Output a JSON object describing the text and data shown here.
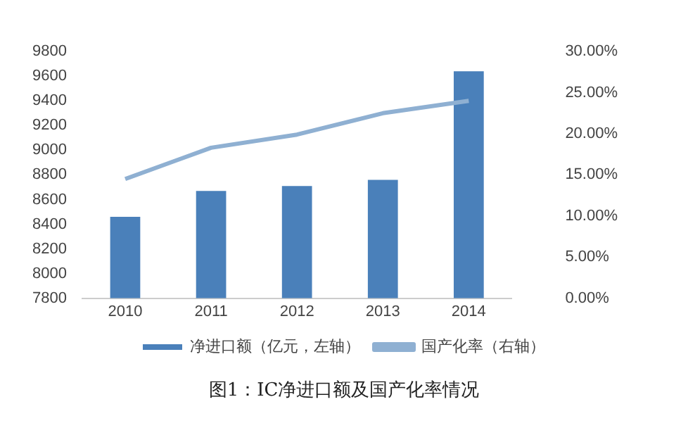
{
  "chart_data": {
    "type": "bar",
    "categories": [
      "2010",
      "2011",
      "2012",
      "2013",
      "2014"
    ],
    "series": [
      {
        "name": "净进口额（亿元，左轴）",
        "color": "#4a80ba",
        "values": [
          8460,
          8670,
          8710,
          8760,
          9640
        ]
      },
      {
        "name": "国产化率（右轴）",
        "type": "line",
        "axis": "y2",
        "color": "#8fb0d2",
        "values": [
          14.5,
          18.3,
          19.9,
          22.5,
          24.0
        ]
      }
    ],
    "ylim": [
      7800,
      9800
    ],
    "yticks": [
      7800,
      8000,
      8200,
      8400,
      8600,
      8800,
      9000,
      9200,
      9400,
      9600,
      9800
    ],
    "y2lim": [
      0,
      30
    ],
    "y2ticks": [
      {
        "value": 0,
        "label": "0.00%"
      },
      {
        "value": 5,
        "label": "5.00%"
      },
      {
        "value": 10,
        "label": "10.00%"
      },
      {
        "value": 15,
        "label": "15.00%"
      },
      {
        "value": 20,
        "label": "20.00%"
      },
      {
        "value": 25,
        "label": "25.00%"
      },
      {
        "value": 30,
        "label": "30.00%"
      }
    ],
    "grid": false,
    "legend": "bottom",
    "annotations": [
      "图1：IC净进口额及国产化率情况"
    ]
  }
}
